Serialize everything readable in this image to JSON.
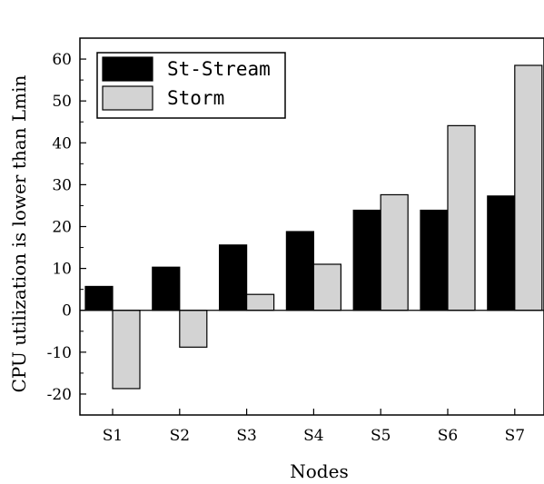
{
  "chart_data": {
    "type": "bar",
    "title": "",
    "xlabel": "Nodes",
    "ylabel": "CPU utilization is lower than Lmin",
    "categories": [
      "S1",
      "S2",
      "S3",
      "S4",
      "S5",
      "S6",
      "S7"
    ],
    "series": [
      {
        "name": "St-Stream",
        "values": [
          5.7,
          10.3,
          15.6,
          18.8,
          23.9,
          23.9,
          27.3
        ],
        "color": "#000000"
      },
      {
        "name": "Storm",
        "values": [
          -18.7,
          -8.8,
          3.8,
          11.0,
          27.6,
          44.1,
          58.5
        ],
        "color": "#d3d3d3"
      }
    ],
    "ylim": [
      -25,
      65
    ],
    "yticks": [
      -20,
      -10,
      0,
      10,
      20,
      30,
      40,
      50,
      60
    ],
    "ytick_labels": [
      "-20",
      "-10",
      "0",
      "10",
      "20",
      "30",
      "40",
      "50",
      "60"
    ],
    "grid": false,
    "legend_position": "top-left"
  }
}
